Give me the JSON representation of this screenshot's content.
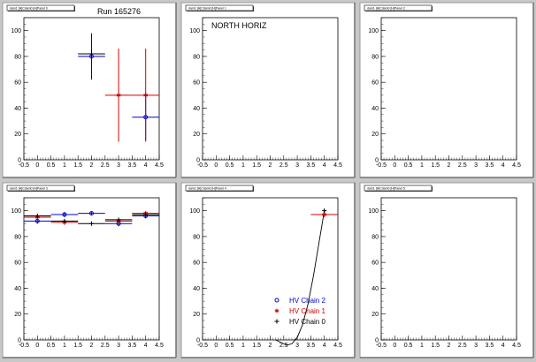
{
  "chart_data": [
    {
      "type": "scatter",
      "panel": 1,
      "tab_title": "dam1 [H]Cdam0 [H]Panel 0",
      "label": "Run 165276",
      "xlim": [
        -0.5,
        4.5
      ],
      "ylim": [
        0,
        110
      ],
      "x_ticks": [
        "-0.5",
        "0",
        "0.5",
        "1",
        "1.5",
        "2",
        "2.5",
        "3",
        "3.5",
        "4",
        "4.5"
      ],
      "y_ticks": [
        "0",
        "20",
        "40",
        "60",
        "80",
        "100"
      ],
      "series": [
        {
          "color": "#0000cc",
          "marker": "circle",
          "points": [
            {
              "x": 2,
              "y": 80,
              "xerr": 0.5,
              "yerr": 18
            },
            {
              "x": 4,
              "y": 33,
              "xerr": 0.5,
              "yerr": 18
            }
          ]
        },
        {
          "color": "#000000",
          "marker": "cross",
          "points": [
            {
              "x": 2,
              "y": 82,
              "xerr": 0.5,
              "yerr": 3
            }
          ]
        },
        {
          "color": "#cc0000",
          "marker": "star",
          "points": [
            {
              "x": 3,
              "y": 50,
              "xerr": 0.5,
              "yerr": 36
            },
            {
              "x": 4,
              "y": 50,
              "xerr": 0.5,
              "yerr": 36
            }
          ]
        }
      ]
    },
    {
      "type": "scatter",
      "panel": 2,
      "tab_title": "dam1 [H]Cdam0 [H]Panel 1",
      "label": "NORTH HORIZ",
      "xlim": [
        -0.5,
        4.5
      ],
      "ylim": [
        0,
        110
      ],
      "x_ticks": [
        "-0.5",
        "0",
        "0.5",
        "1",
        "1.5",
        "2",
        "2.5",
        "3",
        "3.5",
        "4",
        "4.5"
      ],
      "y_ticks": [
        "0",
        "20",
        "40",
        "60",
        "80",
        "100"
      ],
      "series": []
    },
    {
      "type": "scatter",
      "panel": 3,
      "tab_title": "dam1 [H]Cdam0 [H]Panel 2",
      "label": "",
      "xlim": [
        -0.5,
        4.5
      ],
      "ylim": [
        0,
        110
      ],
      "x_ticks": [
        "-0.5",
        "0",
        "0.5",
        "1",
        "1.5",
        "2",
        "2.5",
        "3",
        "3.5",
        "4",
        "4.5"
      ],
      "y_ticks": [
        "0",
        "20",
        "40",
        "60",
        "80",
        "100"
      ],
      "series": []
    },
    {
      "type": "scatter",
      "panel": 4,
      "tab_title": "dam1 [H]Cdam0 [H]Panel 3",
      "label": "",
      "xlim": [
        -0.5,
        4.5
      ],
      "ylim": [
        0,
        110
      ],
      "x_ticks": [
        "-0.5",
        "0",
        "0.5",
        "1",
        "1.5",
        "2",
        "2.5",
        "3",
        "3.5",
        "4",
        "4.5"
      ],
      "y_ticks": [
        "0",
        "20",
        "40",
        "60",
        "80",
        "100"
      ],
      "series": [
        {
          "color": "#0000cc",
          "marker": "circle",
          "points": [
            {
              "x": 0,
              "y": 92,
              "xerr": 0.5,
              "yerr": 2
            },
            {
              "x": 1,
              "y": 97,
              "xerr": 0.5,
              "yerr": 2
            },
            {
              "x": 2,
              "y": 98,
              "xerr": 0.5,
              "yerr": 1
            },
            {
              "x": 3,
              "y": 90,
              "xerr": 0.5,
              "yerr": 2
            },
            {
              "x": 4,
              "y": 96,
              "xerr": 0.5,
              "yerr": 2
            }
          ]
        },
        {
          "color": "#cc0000",
          "marker": "star",
          "points": [
            {
              "x": 0,
              "y": 95,
              "xerr": 0.5,
              "yerr": 2
            },
            {
              "x": 1,
              "y": 91,
              "xerr": 0.5,
              "yerr": 2
            },
            {
              "x": 3,
              "y": 92,
              "xerr": 0.5,
              "yerr": 2
            },
            {
              "x": 4,
              "y": 98,
              "xerr": 0.5,
              "yerr": 1
            }
          ]
        },
        {
          "color": "#000000",
          "marker": "cross",
          "points": [
            {
              "x": 0,
              "y": 96,
              "xerr": 0.5,
              "yerr": 1
            },
            {
              "x": 1,
              "y": 92,
              "xerr": 0.5,
              "yerr": 1
            },
            {
              "x": 2,
              "y": 90,
              "xerr": 0.5,
              "yerr": 1
            },
            {
              "x": 3,
              "y": 93,
              "xerr": 0.5,
              "yerr": 1
            },
            {
              "x": 4,
              "y": 97,
              "xerr": 0.5,
              "yerr": 1
            }
          ]
        }
      ]
    },
    {
      "type": "scatter",
      "panel": 5,
      "tab_title": "dam1 [H]Cdam0 [H]Panel 4",
      "label": "",
      "xlim": [
        -0.5,
        4.5
      ],
      "ylim": [
        0,
        110
      ],
      "x_ticks": [
        "-0.5",
        "0",
        "0.5",
        "1",
        "1.5",
        "2",
        "2.5",
        "3",
        "3.5",
        "4",
        "4.5"
      ],
      "y_ticks": [
        "0",
        "20",
        "40",
        "60",
        "80",
        "100"
      ],
      "series": [
        {
          "color": "#cc0000",
          "marker": "star",
          "points": [
            {
              "x": 4,
              "y": 97,
              "xerr": 0.5,
              "yerr": 2
            }
          ]
        },
        {
          "color": "#000000",
          "marker": "cross",
          "points": [
            {
              "x": 4,
              "y": 100,
              "xerr": 0,
              "yerr": 1
            }
          ]
        }
      ],
      "fit_curve": {
        "color": "#000000",
        "points": [
          [
            2.2,
            0
          ],
          [
            2.4,
            -2
          ],
          [
            2.6,
            -4
          ],
          [
            2.8,
            -3
          ],
          [
            3.0,
            2
          ],
          [
            3.2,
            12
          ],
          [
            3.4,
            28
          ],
          [
            3.6,
            50
          ],
          [
            3.8,
            75
          ],
          [
            4.0,
            100
          ]
        ]
      },
      "legend": [
        {
          "label": "HV Chain 2",
          "color": "#0000cc",
          "marker": "circle"
        },
        {
          "label": "HV Chain 1",
          "color": "#cc0000",
          "marker": "star"
        },
        {
          "label": "HV Chain 0",
          "color": "#000000",
          "marker": "cross"
        }
      ]
    },
    {
      "type": "scatter",
      "panel": 6,
      "tab_title": "dam1 [H]Cdam0 [H]Panel 5",
      "label": "",
      "xlim": [
        -0.5,
        4.5
      ],
      "ylim": [
        0,
        110
      ],
      "x_ticks": [
        "-0.5",
        "0",
        "0.5",
        "1",
        "1.5",
        "2",
        "2.5",
        "3",
        "3.5",
        "4",
        "4.5"
      ],
      "y_ticks": [
        "0",
        "20",
        "40",
        "60",
        "80",
        "100"
      ],
      "series": []
    }
  ]
}
